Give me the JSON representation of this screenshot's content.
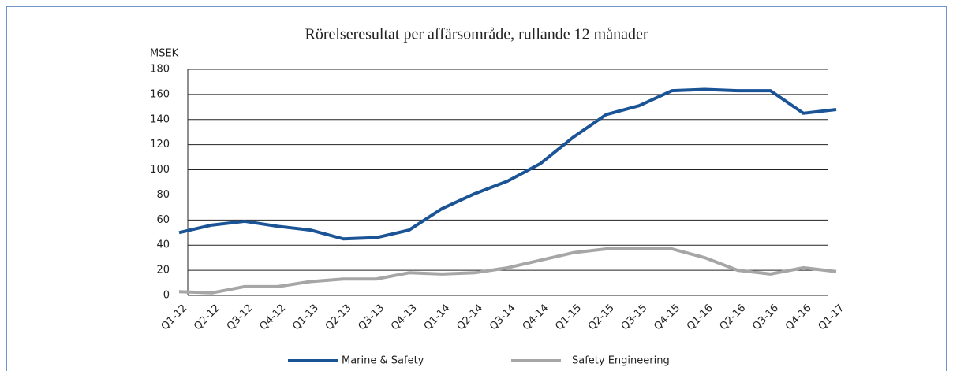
{
  "chart_data": {
    "type": "line",
    "title": "Rörelseresultat per affärsområde, rullande 12 månader",
    "y_label": "MSEK",
    "categories": [
      "Q1-12",
      "Q2-12",
      "Q3-12",
      "Q4-12",
      "Q1-13",
      "Q2-13",
      "Q3-13",
      "Q4-13",
      "Q1-14",
      "Q2-14",
      "Q3-14",
      "Q4-14",
      "Q1-15",
      "Q2-15",
      "Q3-15",
      "Q4-15",
      "Q1-16",
      "Q2-16",
      "Q3-16",
      "Q4-16",
      "Q1-17"
    ],
    "series": [
      {
        "name": "Marine & Safety",
        "color": "#1a5496",
        "values": [
          50,
          56,
          59,
          55,
          52,
          45,
          46,
          52,
          69,
          81,
          91,
          105,
          126,
          144,
          151,
          163,
          164,
          163,
          163,
          145,
          148
        ]
      },
      {
        "name": "Safety Engineering",
        "color": "#a6a6a6",
        "values": [
          3,
          2,
          7,
          7,
          11,
          13,
          13,
          18,
          17,
          18,
          22,
          28,
          34,
          37,
          37,
          37,
          30,
          20,
          17,
          22,
          19
        ]
      }
    ],
    "ylim": [
      0,
      180
    ],
    "yticks": [
      0,
      20,
      40,
      60,
      80,
      100,
      120,
      140,
      160,
      180
    ],
    "grid": true,
    "legend": "bottom"
  }
}
